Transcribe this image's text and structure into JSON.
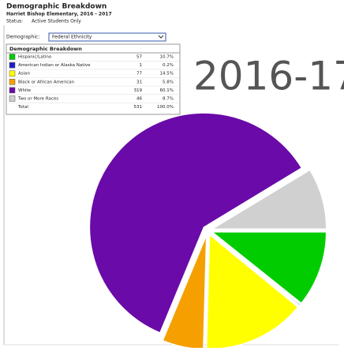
{
  "header": {
    "title": "Demographic Breakdown",
    "school": "Harriet Bishop Elementary, 2016 - 2017",
    "status_label": "Status:",
    "status": "Active Students Only",
    "demographic_label": "Demographic:",
    "demographic_value": "Federal Ethnicity"
  },
  "chart_data": {
    "type": "pie",
    "title": "Demographic Breakdown",
    "annotation": "2016-17",
    "categories": [
      "Hispanic/Latino",
      "American Indian or Alaska Native",
      "Asian",
      "Black or African American",
      "White",
      "Two or More Races"
    ],
    "values": [
      57,
      1,
      77,
      31,
      319,
      46
    ],
    "value_labels": [
      "10.7%",
      "0.2%",
      "14.5%",
      "5.8%",
      "60.1%",
      "8.7%"
    ],
    "colors": [
      "#00cc00",
      "#1c1cc8",
      "#ffff00",
      "#f5a000",
      "#6a0aa8",
      "#d0d0d0"
    ],
    "total_label": "Total",
    "total": 531,
    "total_percent": "100.0%"
  }
}
